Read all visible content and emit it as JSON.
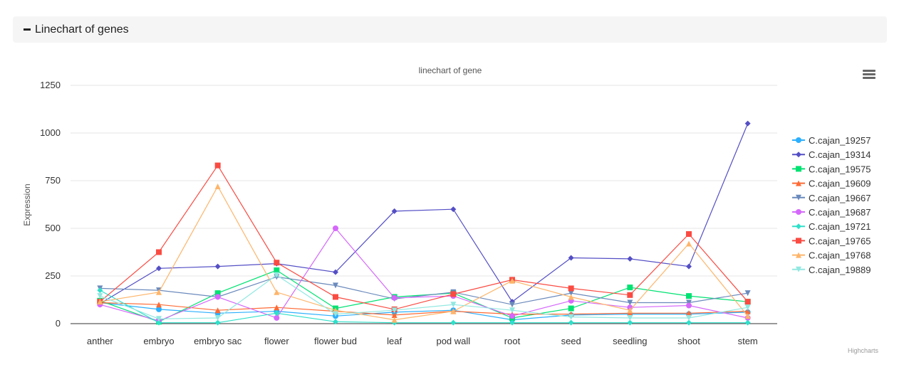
{
  "panel": {
    "title": "Linechart of genes"
  },
  "chart_data": {
    "type": "line",
    "title": "linechart of gene",
    "xlabel": "",
    "ylabel": "Expression",
    "ylim": [
      0,
      1250
    ],
    "yticks": [
      0,
      250,
      500,
      750,
      1000,
      1250
    ],
    "ytick_labels": [
      "0",
      "250",
      "500",
      "750",
      "1000",
      "1250"
    ],
    "grid": true,
    "legend_position": "right",
    "credits": "Highcharts",
    "categories": [
      "anther",
      "embryo",
      "embryo sac",
      "flower",
      "flower bud",
      "leaf",
      "pod wall",
      "root",
      "seed",
      "seedling",
      "shoot",
      "stem"
    ],
    "series": [
      {
        "name": "C.cajan_19257",
        "color": "#2caffe",
        "marker": "circle",
        "values": [
          110,
          75,
          55,
          65,
          40,
          60,
          70,
          20,
          45,
          50,
          50,
          60
        ]
      },
      {
        "name": "C.cajan_19314",
        "color": "#544fc5",
        "marker": "diamond",
        "values": [
          105,
          290,
          300,
          315,
          270,
          590,
          600,
          115,
          345,
          340,
          300,
          1050
        ]
      },
      {
        "name": "C.cajan_19575",
        "color": "#00e272",
        "marker": "square",
        "values": [
          120,
          10,
          160,
          280,
          80,
          140,
          160,
          30,
          80,
          190,
          145,
          115
        ]
      },
      {
        "name": "C.cajan_19609",
        "color": "#fe6a35",
        "marker": "triangle",
        "values": [
          110,
          100,
          70,
          85,
          65,
          45,
          65,
          50,
          50,
          55,
          55,
          65
        ]
      },
      {
        "name": "C.cajan_19667",
        "color": "#6b8abc",
        "marker": "triangle-down",
        "values": [
          185,
          175,
          140,
          245,
          200,
          130,
          165,
          100,
          160,
          110,
          110,
          160
        ]
      },
      {
        "name": "C.cajan_19687",
        "color": "#d568fb",
        "marker": "circle",
        "values": [
          100,
          15,
          140,
          30,
          500,
          135,
          145,
          40,
          120,
          85,
          95,
          30
        ]
      },
      {
        "name": "C.cajan_19721",
        "color": "#2ee0ca",
        "marker": "diamond",
        "values": [
          175,
          5,
          5,
          55,
          10,
          5,
          5,
          5,
          5,
          5,
          5,
          5
        ]
      },
      {
        "name": "C.cajan_19765",
        "color": "#fa4b42",
        "marker": "square",
        "values": [
          115,
          375,
          830,
          320,
          140,
          75,
          155,
          230,
          185,
          150,
          470,
          115
        ]
      },
      {
        "name": "C.cajan_19768",
        "color": "#feb56a",
        "marker": "triangle",
        "values": [
          115,
          165,
          720,
          165,
          70,
          20,
          65,
          225,
          140,
          70,
          420,
          40
        ]
      },
      {
        "name": "C.cajan_19889",
        "color": "#91e8e1",
        "marker": "triangle-down",
        "values": [
          145,
          25,
          30,
          255,
          50,
          70,
          100,
          70,
          35,
          30,
          30,
          85
        ]
      }
    ]
  }
}
